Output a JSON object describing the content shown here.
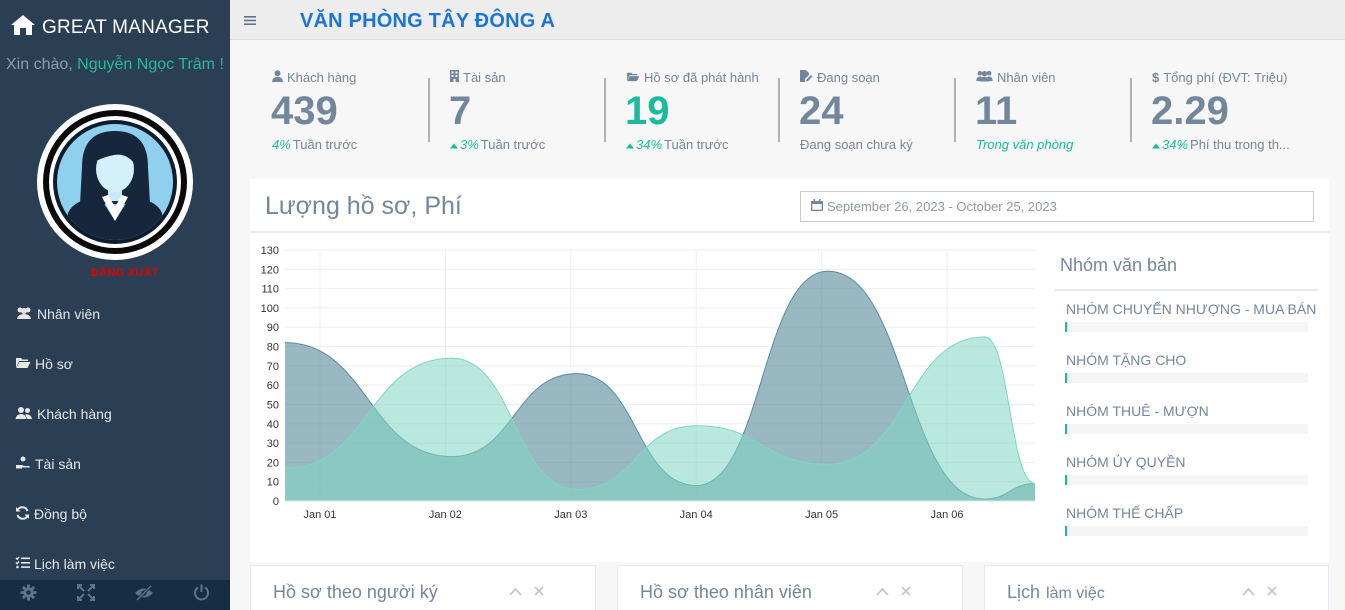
{
  "sidebar": {
    "brand": "GREAT MANAGER",
    "greeting_prefix": "Xin chào,",
    "user_name": "Nguyễn Ngọc Trâm",
    "greeting_suffix": "!",
    "logout": "ĐĂNG XUẤT",
    "menu": [
      {
        "label": "Nhân viên",
        "icon": "users-icon"
      },
      {
        "label": "Hồ sơ",
        "icon": "folder-open-icon"
      },
      {
        "label": "Khách hàng",
        "icon": "users-icon"
      },
      {
        "label": "Tài sản",
        "icon": "hand-coin-icon"
      },
      {
        "label": "Đồng bộ",
        "icon": "sync-icon"
      },
      {
        "label": "Lịch làm việc",
        "icon": "task-list-icon"
      }
    ],
    "footer_icons": [
      "settings-icon",
      "fullscreen-icon",
      "eye-slash-icon",
      "power-icon"
    ]
  },
  "header": {
    "title": "VĂN PHÒNG TÂY ĐÔNG A"
  },
  "tiles": [
    {
      "label": "Khách hàng",
      "icon": "user-icon",
      "value": "439",
      "pct": "4%",
      "note": "Tuần trước",
      "arrow": false
    },
    {
      "label": "Tài sản",
      "icon": "building-icon",
      "value": "7",
      "pct": "3%",
      "note": "Tuần trước",
      "arrow": true
    },
    {
      "label": "Hồ sơ đã phát hành",
      "icon": "folder-open-icon",
      "value": "19",
      "pct": "34%",
      "note": "Tuần trước",
      "arrow": true
    },
    {
      "label": "Đang soạn",
      "icon": "edit-file-icon",
      "value": "24",
      "pct": "",
      "note": "Đang soạn chưa ký",
      "arrow": false
    },
    {
      "label": "Nhân viên",
      "icon": "users-icon",
      "value": "11",
      "pct": "",
      "note": "Trong văn phòng",
      "arrow": false
    },
    {
      "label": "Tổng phí (ĐVT: Triệu)",
      "icon": "dollar-icon",
      "value": "2.29",
      "pct": "34%",
      "note": "Phí thu trong th...",
      "arrow": true
    }
  ],
  "chart_panel": {
    "title": "Lượng hồ sơ, Phí",
    "date_range": "September 26, 2023 - October 25, 2023"
  },
  "chart_data": {
    "type": "area",
    "categories": [
      "Jan 01",
      "Jan 02",
      "Jan 03",
      "Jan 04",
      "Jan 05",
      "Jan 06"
    ],
    "ylim": [
      0,
      130
    ],
    "yticks": [
      0,
      10,
      20,
      30,
      40,
      50,
      60,
      70,
      80,
      90,
      100,
      110,
      120,
      130
    ],
    "grid": true,
    "series": [
      {
        "color": "#5a8d9c",
        "x": [
          0,
          1.05,
          2.05,
          3.0,
          4.05,
          5.3,
          6.0
        ],
        "values": [
          82,
          23,
          66,
          8,
          119,
          1,
          9
        ]
      },
      {
        "color": "#7fd6c2",
        "x": [
          0,
          1.05,
          2.05,
          3.0,
          4.05,
          5.3,
          6.0
        ],
        "values": [
          17,
          74,
          6,
          39,
          19,
          85,
          9
        ]
      }
    ]
  },
  "groups": {
    "title": "Nhóm văn bản",
    "items": [
      {
        "label": "NHÓM CHUYỂN NHƯỢNG - MUA BÁN",
        "progress": 0.01
      },
      {
        "label": "NHÓM TẶNG CHO",
        "progress": 0.01
      },
      {
        "label": "NHÓM THUÊ - MƯỢN",
        "progress": 0.01
      },
      {
        "label": "NHÓM ỦY QUYỀN",
        "progress": 0.01
      },
      {
        "label": "NHÓM THẾ CHẤP",
        "progress": 0.01
      }
    ]
  },
  "bottom_panels": [
    {
      "title": "Hồ sơ theo người ký",
      "sub": ""
    },
    {
      "title": "Hồ sơ theo nhân viên",
      "sub": ""
    },
    {
      "title": "Lịch",
      "sub": "làm việc"
    }
  ],
  "colors": {
    "sidebar": "#2a3f54",
    "accent_green": "#1abb9c",
    "title_blue": "#1b75d8",
    "logout_red": "#e10000"
  }
}
